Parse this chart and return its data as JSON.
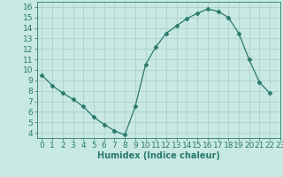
{
  "x": [
    0,
    1,
    2,
    3,
    4,
    5,
    6,
    7,
    8,
    9,
    10,
    11,
    12,
    13,
    14,
    15,
    16,
    17,
    18,
    19,
    20,
    21,
    22
  ],
  "y": [
    9.5,
    8.5,
    7.8,
    7.2,
    6.5,
    5.5,
    4.8,
    4.2,
    3.8,
    6.5,
    10.5,
    12.2,
    13.5,
    14.2,
    14.9,
    15.4,
    15.8,
    15.6,
    15.0,
    13.5,
    11.0,
    8.8,
    7.8
  ],
  "line_color": "#2a7a6a",
  "marker": "D",
  "marker_size": 2.5,
  "bg_color": "#c8e8e4",
  "grid_color": "#a8ccc8",
  "xlabel": "Humidex (Indice chaleur)",
  "xlim": [
    -0.5,
    23
  ],
  "ylim": [
    3.5,
    16.5
  ],
  "yticks": [
    4,
    5,
    6,
    7,
    8,
    9,
    10,
    11,
    12,
    13,
    14,
    15,
    16
  ],
  "xticks": [
    0,
    1,
    2,
    3,
    4,
    5,
    6,
    7,
    8,
    9,
    10,
    11,
    12,
    13,
    14,
    15,
    16,
    17,
    18,
    19,
    20,
    21,
    22,
    23
  ],
  "label_fontsize": 7,
  "tick_fontsize": 6.5
}
